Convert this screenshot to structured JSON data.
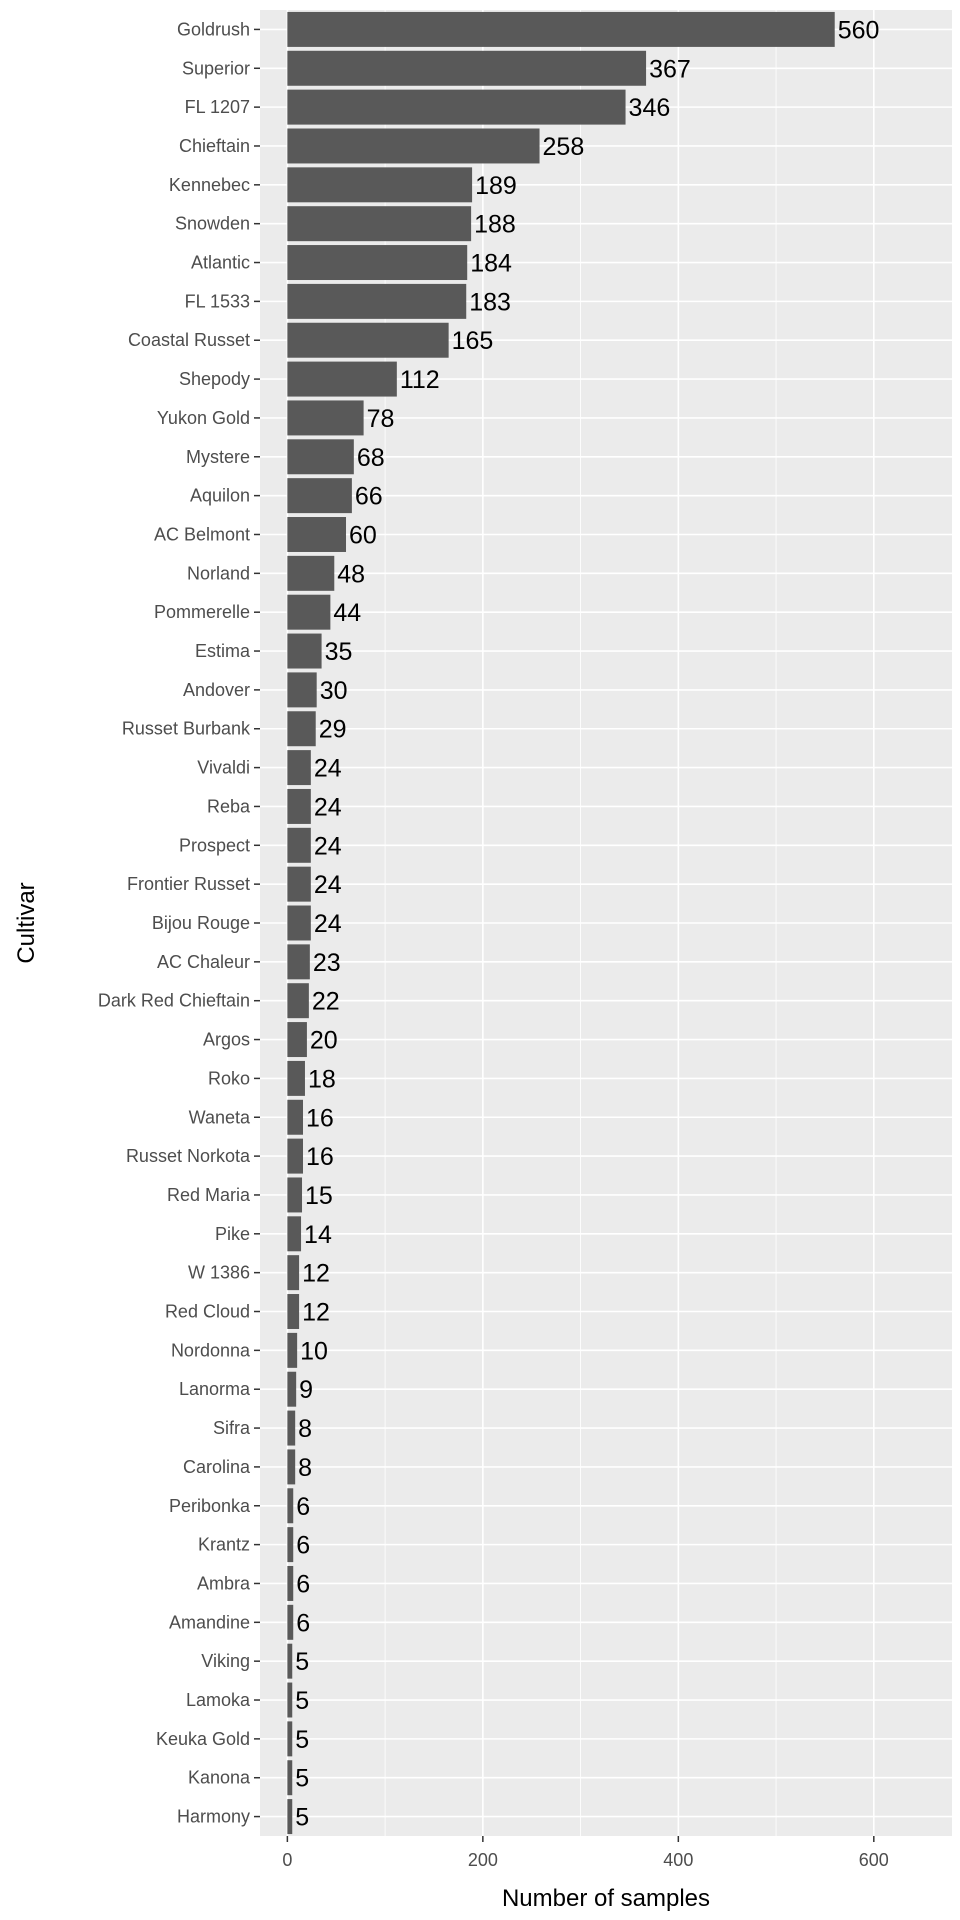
{
  "chart_data": {
    "type": "bar",
    "orientation": "horizontal",
    "title": "",
    "xlabel": "Number of samples",
    "ylabel": "Cultivar",
    "xlim": [
      -28,
      680
    ],
    "xticks": [
      0,
      200,
      400,
      600
    ],
    "grid": true,
    "categories": [
      "Goldrush",
      "Superior",
      "FL 1207",
      "Chieftain",
      "Kennebec",
      "Snowden",
      "Atlantic",
      "FL 1533",
      "Coastal Russet",
      "Shepody",
      "Yukon Gold",
      "Mystere",
      "Aquilon",
      "AC Belmont",
      "Norland",
      "Pommerelle",
      "Estima",
      "Andover",
      "Russet Burbank",
      "Vivaldi",
      "Reba",
      "Prospect",
      "Frontier Russet",
      "Bijou Rouge",
      "AC Chaleur",
      "Dark Red Chieftain",
      "Argos",
      "Roko",
      "Waneta",
      "Russet Norkota",
      "Red Maria",
      "Pike",
      "W 1386",
      "Red Cloud",
      "Nordonna",
      "Lanorma",
      "Sifra",
      "Carolina",
      "Peribonka",
      "Krantz",
      "Ambra",
      "Amandine",
      "Viking",
      "Lamoka",
      "Keuka Gold",
      "Kanona",
      "Harmony"
    ],
    "values": [
      560,
      367,
      346,
      258,
      189,
      188,
      184,
      183,
      165,
      112,
      78,
      68,
      66,
      60,
      48,
      44,
      35,
      30,
      29,
      24,
      24,
      24,
      24,
      24,
      23,
      22,
      20,
      18,
      16,
      16,
      15,
      14,
      12,
      12,
      10,
      9,
      8,
      8,
      6,
      6,
      6,
      6,
      5,
      5,
      5,
      5,
      5
    ],
    "colors": {
      "bar": "#595959",
      "panel": "#ebebeb",
      "grid": "#ffffff"
    }
  }
}
